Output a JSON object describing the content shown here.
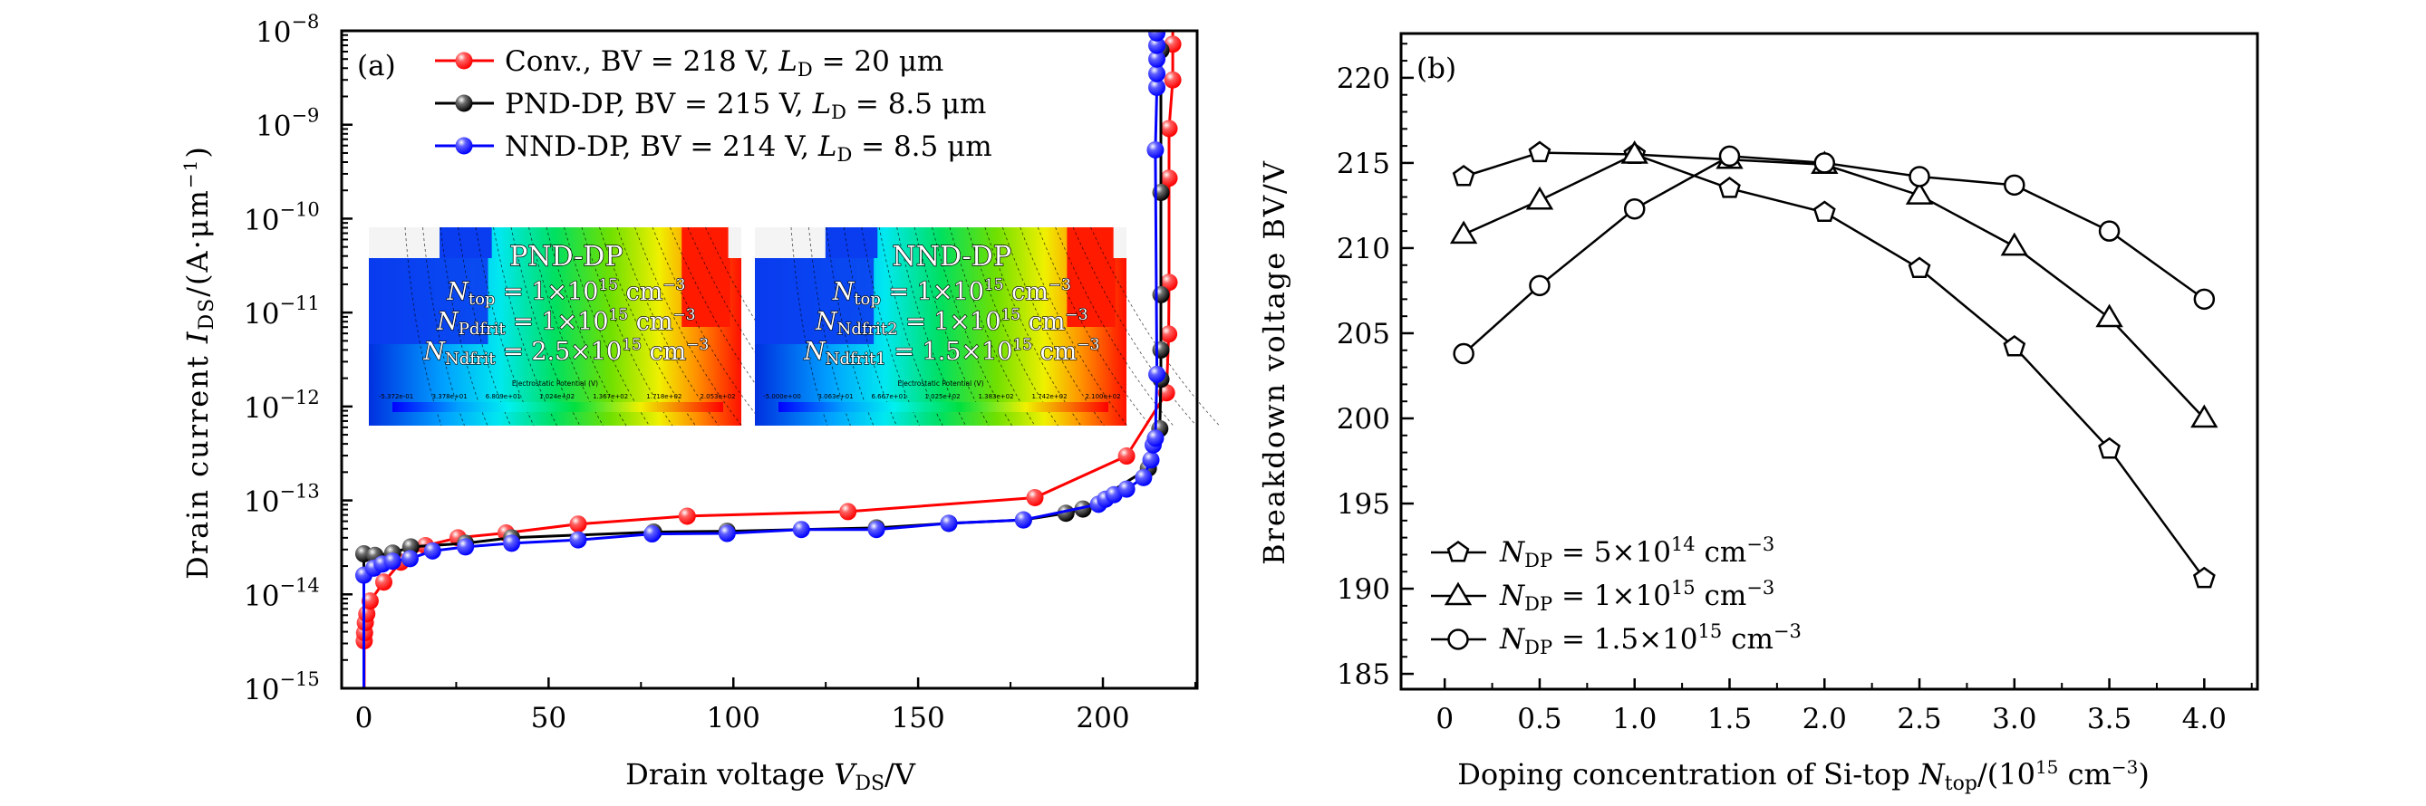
{
  "figure": {
    "background": "#ffffff"
  },
  "chart_data": [
    {
      "id": "a",
      "type": "line",
      "panel_tag": "(a)",
      "title": "",
      "xlabel": "Drain voltage V_DS/V",
      "xlabel_parts": {
        "pre": "Drain voltage ",
        "var": "V",
        "sub": "DS",
        "post": "/V"
      },
      "ylabel": "Drain current I_DS/(A·μm^-1)",
      "ylabel_parts": {
        "pre": "Drain current ",
        "var": "I",
        "sub": "DS",
        "post": "/(A·μm",
        "sup": "−1",
        "end": ")"
      },
      "xlim": [
        -6,
        225.5
      ],
      "ylim": [
        1e-15,
        1e-08
      ],
      "yscale": "log",
      "xticks": [
        0,
        50,
        100,
        150,
        200
      ],
      "xtick_labels": [
        "0",
        "50",
        "100",
        "150",
        "200"
      ],
      "x_minor_ticks": [
        25,
        75,
        125,
        175,
        225
      ],
      "yticks_exp": [
        -8,
        -9,
        -10,
        -11,
        -12,
        -13,
        -14,
        -15
      ],
      "ytick_base": "10",
      "grid": false,
      "legend_position": "top-left",
      "series": [
        {
          "name": "Conv., BV = 218 V, L_D = 20 μm",
          "legend_parts": {
            "pre": "Conv., BV = 218 V, ",
            "var": "L",
            "sub": "D",
            "post": " = 20 μm"
          },
          "color": "#ff0000",
          "points": [
            [
              0.1,
              3.2e-15
            ],
            [
              0.2,
              3.9e-15
            ],
            [
              0.4,
              5e-15
            ],
            [
              0.8,
              6.2e-15
            ],
            [
              1.7,
              8.5e-15
            ],
            [
              5.4,
              1.35e-14
            ],
            [
              10,
              2.2e-14
            ],
            [
              16.7,
              3.3e-14
            ],
            [
              25.5,
              4e-14
            ],
            [
              38.5,
              4.5e-14
            ],
            [
              58,
              5.6e-14
            ],
            [
              87.5,
              6.8e-14
            ],
            [
              131,
              7.6e-14
            ],
            [
              181.6,
              1.07e-13
            ],
            [
              206.4,
              2.97e-13
            ],
            [
              217.2,
              1.4e-12
            ],
            [
              217.8,
              5.9e-12
            ],
            [
              217.9,
              2.1e-11
            ],
            [
              217.9,
              2.7e-10
            ],
            [
              217.9,
              9.1e-10
            ],
            [
              218.9,
              3e-09
            ],
            [
              218.9,
              7.2e-09
            ]
          ]
        },
        {
          "name": "PND-DP, BV = 215 V, L_D = 8.5 μm",
          "legend_parts": {
            "pre": "PND-DP, BV = 215 V, ",
            "var": "L",
            "sub": "D",
            "post": " = 8.5 μm"
          },
          "color": "#000000",
          "points": [
            [
              0,
              2.7e-14
            ],
            [
              3,
              2.6e-14
            ],
            [
              7.8,
              2.75e-14
            ],
            [
              12.7,
              3.2e-14
            ],
            [
              27.5,
              3.5e-14
            ],
            [
              40,
              4e-14
            ],
            [
              78.4,
              4.6e-14
            ],
            [
              98.3,
              4.7e-14
            ],
            [
              138.7,
              5.1e-14
            ],
            [
              158.3,
              5.7e-14
            ],
            [
              178.5,
              6.2e-14
            ],
            [
              190,
              7.3e-14
            ],
            [
              194.6,
              8.1e-14
            ],
            [
              212.3,
              2.2e-13
            ],
            [
              215.4,
              5.8e-13
            ],
            [
              215.7,
              1.95e-12
            ],
            [
              215.7,
              4e-12
            ],
            [
              215.7,
              1.55e-11
            ],
            [
              215.7,
              1.9e-10
            ],
            [
              215.7,
              6.2e-09
            ]
          ]
        },
        {
          "name": "NND-DP, BV = 214 V, L_D = 8.5 μm",
          "legend_parts": {
            "pre": "NND-DP, BV = 214 V, ",
            "var": "L",
            "sub": "D",
            "post": " = 8.5 μm"
          },
          "color": "#0000ff",
          "points": [
            [
              0,
              1.6e-14
            ],
            [
              2.7,
              1.9e-14
            ],
            [
              5,
              2.1e-14
            ],
            [
              7.8,
              2.25e-14
            ],
            [
              12.5,
              2.4e-14
            ],
            [
              18.6,
              2.9e-14
            ],
            [
              27.5,
              3.2e-14
            ],
            [
              40,
              3.5e-14
            ],
            [
              58,
              3.8e-14
            ],
            [
              78,
              4.4e-14
            ],
            [
              98.3,
              4.45e-14
            ],
            [
              118.4,
              4.9e-14
            ],
            [
              138.7,
              4.9e-14
            ],
            [
              158.3,
              5.7e-14
            ],
            [
              178.5,
              6.2e-14
            ],
            [
              198.8,
              9.1e-14
            ],
            [
              200.7,
              1.03e-13
            ],
            [
              203,
              1.15e-13
            ],
            [
              206.4,
              1.32e-13
            ],
            [
              211,
              1.75e-13
            ],
            [
              213,
              2.7e-13
            ],
            [
              213.6,
              3.9e-13
            ],
            [
              214.2,
              4.6e-13
            ],
            [
              214.6,
              2.2e-12
            ],
            [
              214.2,
              5.4e-10
            ],
            [
              214.6,
              2.5e-09
            ],
            [
              214.6,
              3.5e-09
            ],
            [
              214.6,
              5e-09
            ],
            [
              214.6,
              7e-09
            ],
            [
              214.6,
              9.5e-09
            ]
          ]
        }
      ],
      "insets": [
        {
          "name": "PND-DP potential map",
          "title": "PND-DP",
          "lines": [
            {
              "var": "N",
              "sub": "top",
              "rest": " = 1×10",
              "sup": "15",
              "unit": " cm",
              "unit_sup": "−3"
            },
            {
              "var": "N",
              "sub": "Pdfrit",
              "rest": " = 1×10",
              "sup": "15",
              "unit": " cm",
              "unit_sup": "−3"
            },
            {
              "var": "N",
              "sub": "Ndfrit",
              "rest": " = 2.5×10",
              "sup": "15",
              "unit": " cm",
              "unit_sup": "−3"
            }
          ],
          "colorbar_title": "Electrostatic Potential (V)",
          "colorbar_labels": [
            "-5.372e-01",
            "3.378e+01",
            "6.809e+01",
            "1.024e+02",
            "1.367e+02",
            "1.718e+02",
            "2.053e+02"
          ]
        },
        {
          "name": "NND-DP potential map",
          "title": "NND-DP",
          "lines": [
            {
              "var": "N",
              "sub": "top",
              "rest": " = 1×10",
              "sup": "15",
              "unit": " cm",
              "unit_sup": "−3"
            },
            {
              "var": "N",
              "sub": "Ndfrit2",
              "rest": " = 1×10",
              "sup": "15",
              "unit": " cm",
              "unit_sup": "−3"
            },
            {
              "var": "N",
              "sub": "Ndfrit1",
              "rest": " = 1.5×10",
              "sup": "15",
              "unit": " cm",
              "unit_sup": "−3"
            }
          ],
          "colorbar_title": "Electrostatic Potential (V)",
          "colorbar_labels": [
            "-5.000e+00",
            "3.063e+01",
            "6.667e+01",
            "1.025e+02",
            "1.383e+02",
            "1.742e+02",
            "2.100e+02"
          ]
        }
      ]
    },
    {
      "id": "b",
      "type": "line",
      "panel_tag": "(b)",
      "title": "",
      "xlabel": "Doping concentration of Si-top N_top/(10^15 cm^-3)",
      "xlabel_parts": {
        "pre": "Doping concentration of Si-top ",
        "var": "N",
        "sub": "top",
        "post": "/(10",
        "sup": "15",
        "mid": " cm",
        "sup2": "−3",
        "end": ")"
      },
      "ylabel": "Breakdown voltage BV/V",
      "xlim": [
        -0.23,
        4.28
      ],
      "ylim": [
        184.1,
        222.6
      ],
      "xticks": [
        0,
        0.5,
        1.0,
        1.5,
        2.0,
        2.5,
        3.0,
        3.5,
        4.0
      ],
      "xtick_labels": [
        "0",
        "0.5",
        "1.0",
        "1.5",
        "2.0",
        "2.5",
        "3.0",
        "3.5",
        "4.0"
      ],
      "yticks": [
        185,
        190,
        195,
        200,
        205,
        210,
        215,
        220
      ],
      "ytick_labels": [
        "185",
        "190",
        "195",
        "200",
        "205",
        "210",
        "215",
        "220"
      ],
      "grid": false,
      "legend_position": "bottom-left",
      "x": [
        0.1,
        0.5,
        1.0,
        1.5,
        2.0,
        2.5,
        3.0,
        3.5,
        4.0
      ],
      "series": [
        {
          "name": "N_DP = 5×10^14 cm^-3",
          "legend_parts": {
            "var": "N",
            "sub": "DP",
            "rest": " = 5×10",
            "sup": "14",
            "unit": " cm",
            "unit_sup": "−3"
          },
          "marker": "pentagon",
          "color": "#000000",
          "values": [
            214.2,
            215.6,
            215.5,
            213.5,
            212.1,
            208.8,
            204.2,
            198.2,
            190.6
          ]
        },
        {
          "name": "N_DP = 1×10^15 cm^-3",
          "legend_parts": {
            "var": "N",
            "sub": "DP",
            "rest": " = 1×10",
            "sup": "15",
            "unit": " cm",
            "unit_sup": "−3"
          },
          "marker": "triangle",
          "color": "#000000",
          "values": [
            210.8,
            212.8,
            215.5,
            215.2,
            214.9,
            213.1,
            210.1,
            205.9,
            200.0
          ]
        },
        {
          "name": "N_DP = 1.5×10^15 cm^-3",
          "legend_parts": {
            "var": "N",
            "sub": "DP",
            "rest": " = 1.5×10",
            "sup": "15",
            "unit": " cm",
            "unit_sup": "−3"
          },
          "marker": "circle",
          "color": "#000000",
          "values": [
            203.8,
            207.8,
            212.3,
            215.4,
            215.0,
            214.2,
            213.7,
            211.0,
            207.0
          ]
        }
      ]
    }
  ]
}
